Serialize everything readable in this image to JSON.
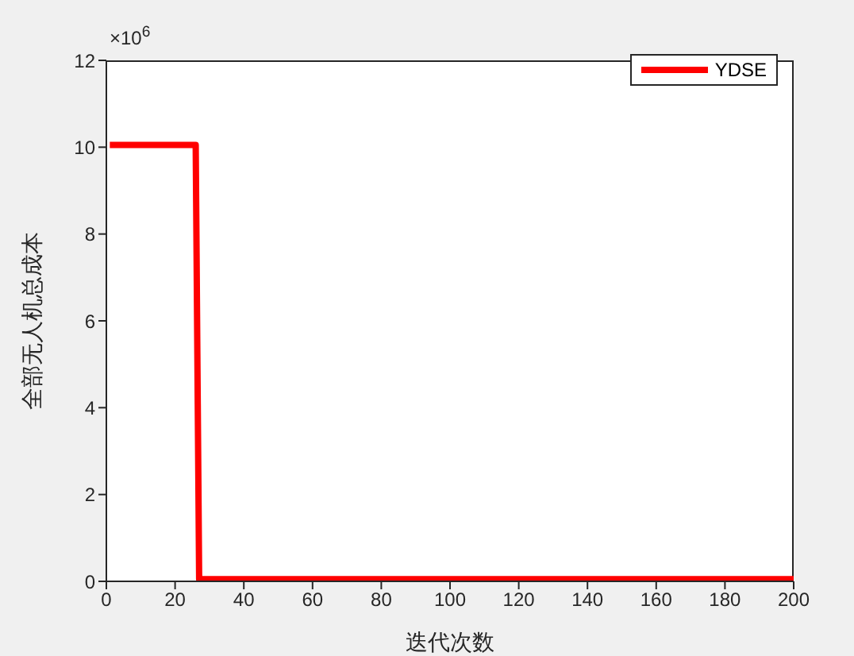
{
  "chart_data": {
    "type": "line",
    "xlabel": "迭代次数",
    "ylabel": "全部无人机总成本",
    "x": [
      1,
      26,
      27,
      200
    ],
    "series": [
      {
        "name": "YDSE",
        "color": "#ff0000",
        "values": [
          10.05,
          10.05,
          0.05,
          0.05
        ]
      }
    ],
    "xlim": [
      0,
      200
    ],
    "xticks": [
      0,
      20,
      40,
      60,
      80,
      100,
      120,
      140,
      160,
      180,
      200
    ],
    "ylim": [
      0,
      12
    ],
    "yticks": [
      0,
      2,
      4,
      6,
      8,
      10,
      12
    ],
    "annotations": [
      "×10$^{6}$"
    ],
    "legend": "top right",
    "marker": "none",
    "line_style": "solid"
  }
}
